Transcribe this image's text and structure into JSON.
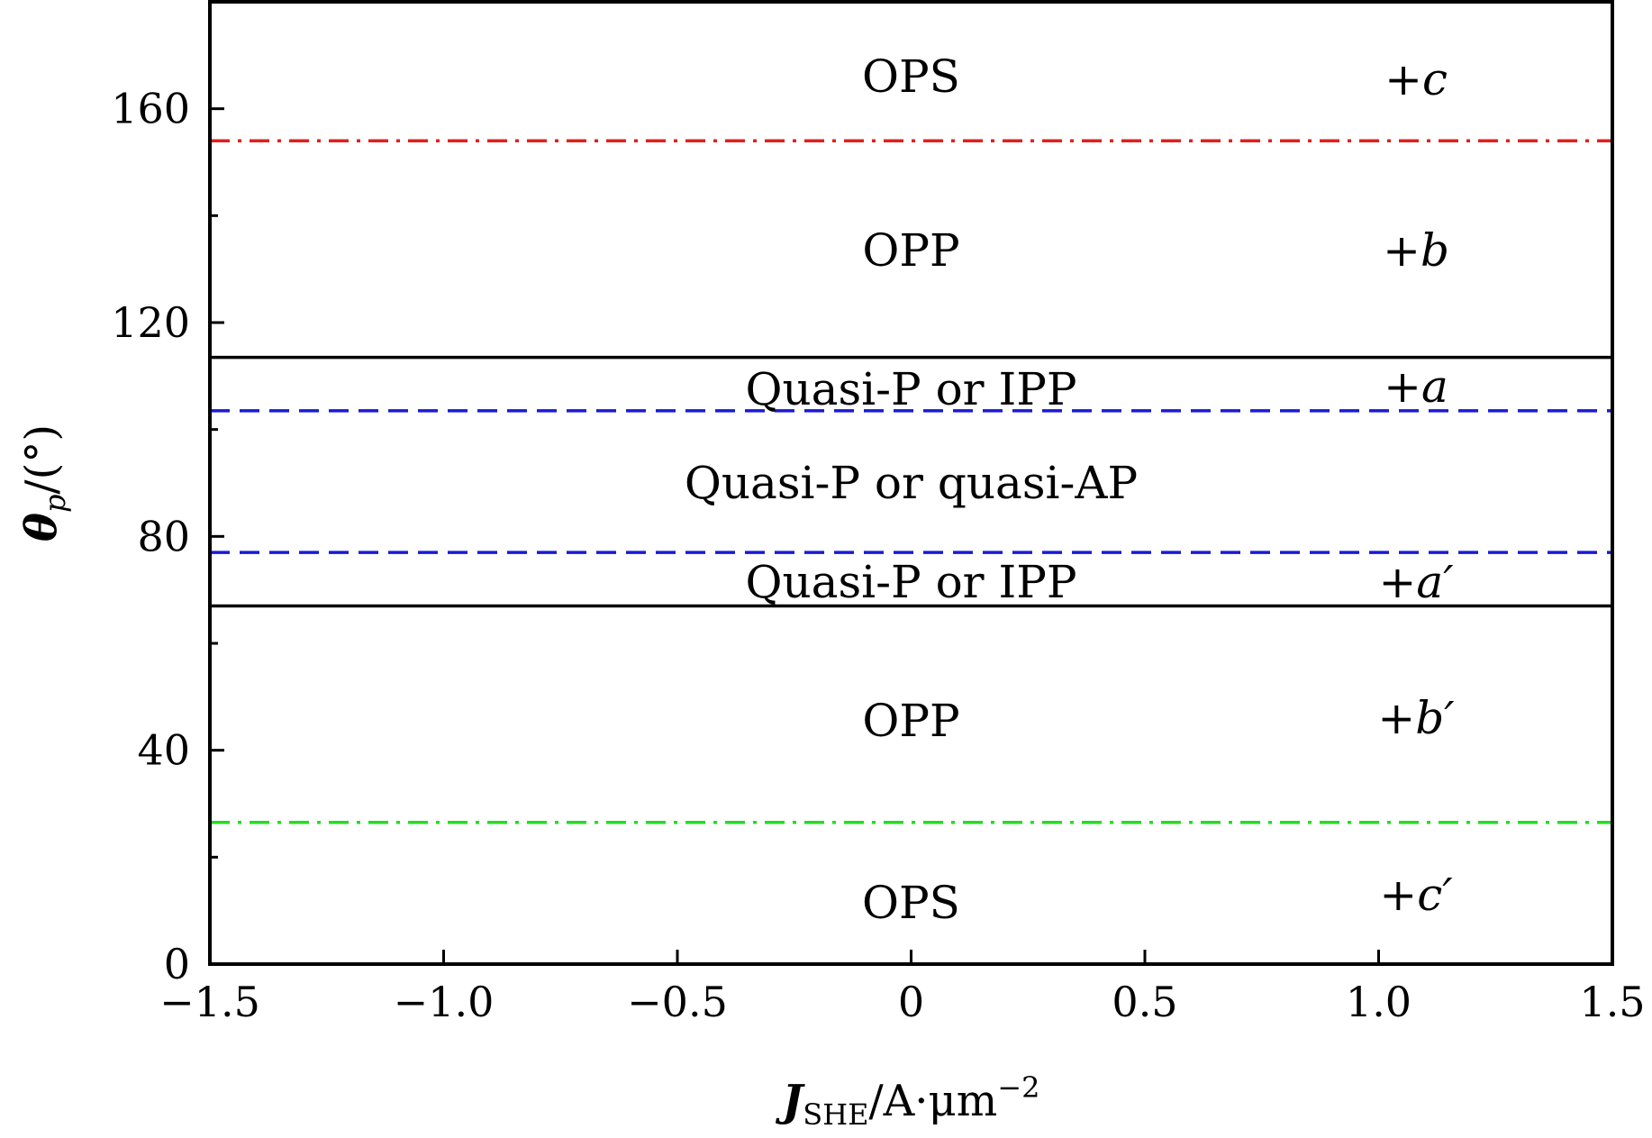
{
  "chart_data": {
    "type": "line",
    "xlabel": {
      "main": "J",
      "sub": "SHE",
      "rest": "/A·μm",
      "sup": "−2"
    },
    "ylabel": {
      "main": "θ",
      "sub": "p",
      "rest": "/(°)"
    },
    "xlim": [
      -1.5,
      1.5
    ],
    "ylim": [
      0,
      180
    ],
    "xticks": [
      -1.5,
      -1.0,
      -0.5,
      0,
      0.5,
      1.0,
      1.5
    ],
    "xtick_labels": [
      "−1.5",
      "−1.0",
      "−0.5",
      "0",
      "0.5",
      "1.0",
      "1.5"
    ],
    "yticks": [
      0,
      40,
      80,
      120,
      160
    ],
    "ytick_labels": [
      "0",
      "40",
      "80",
      "120",
      "160"
    ],
    "yminor_ticks": [
      20,
      60,
      100,
      140
    ],
    "grid": false,
    "series": [
      {
        "color": "#e0201b",
        "style": "dashdot",
        "x": [
          -1.5,
          1.5
        ],
        "y": [
          154,
          154
        ]
      },
      {
        "color": "#000000",
        "style": "solid",
        "x": [
          -1.5,
          1.5
        ],
        "y": [
          113.5,
          113.5
        ]
      },
      {
        "color": "#1a1ad6",
        "style": "dashed",
        "x": [
          -1.5,
          1.5
        ],
        "y": [
          103.5,
          103.5
        ]
      },
      {
        "color": "#1a1ad6",
        "style": "dashed",
        "x": [
          -1.5,
          1.5
        ],
        "y": [
          77,
          77
        ]
      },
      {
        "color": "#000000",
        "style": "solid",
        "x": [
          -1.5,
          1.5
        ],
        "y": [
          67,
          67
        ]
      },
      {
        "color": "#22dd22",
        "style": "dashdot",
        "x": [
          -1.5,
          1.5
        ],
        "y": [
          26.5,
          26.5
        ]
      }
    ],
    "region_labels": [
      {
        "text": "OPS",
        "x": 0,
        "y": 166
      },
      {
        "text": "OPP",
        "x": 0,
        "y": 133.5
      },
      {
        "text": "Quasi-P or IPP",
        "x": 0,
        "y": 107.5
      },
      {
        "text": "Quasi-P or quasi-AP",
        "x": 0,
        "y": 90
      },
      {
        "text": "Quasi-P or IPP",
        "x": 0,
        "y": 71.5
      },
      {
        "text": "OPP",
        "x": 0,
        "y": 45.5
      },
      {
        "text": "OPS",
        "x": 0,
        "y": 11.5
      }
    ],
    "branch_labels": [
      {
        "text": "+c",
        "x": 1.08,
        "y": 165.5
      },
      {
        "text": "+b",
        "x": 1.08,
        "y": 133.5
      },
      {
        "text": "+a",
        "x": 1.08,
        "y": 108
      },
      {
        "text": "+a′",
        "x": 1.08,
        "y": 71.5
      },
      {
        "text": "+b′",
        "x": 1.08,
        "y": 46
      },
      {
        "text": "+c′",
        "x": 1.08,
        "y": 13
      }
    ]
  }
}
